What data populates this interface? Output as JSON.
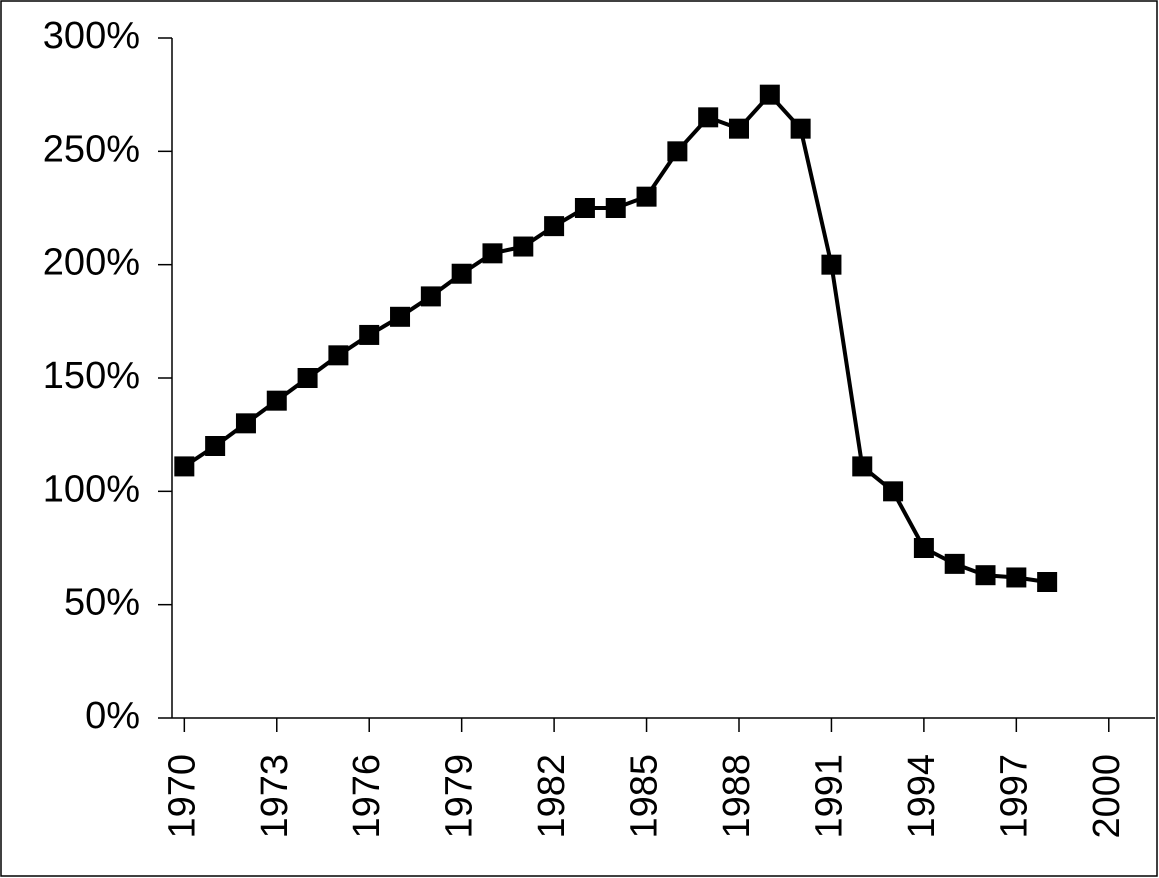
{
  "chart_data": {
    "type": "line",
    "x": [
      1970,
      1971,
      1972,
      1973,
      1974,
      1975,
      1976,
      1977,
      1978,
      1979,
      1980,
      1981,
      1982,
      1983,
      1984,
      1985,
      1986,
      1987,
      1988,
      1989,
      1990,
      1991,
      1992,
      1993,
      1994,
      1995,
      1996,
      1997,
      1998
    ],
    "series": [
      {
        "color": "#000000",
        "values": [
          111,
          120,
          130,
          140,
          150,
          160,
          169,
          177,
          186,
          196,
          205,
          208,
          217,
          225,
          225,
          230,
          250,
          265,
          260,
          275,
          260,
          200,
          111,
          100,
          75,
          68,
          63,
          62,
          60
        ]
      }
    ],
    "xlim": [
      1969.6,
      2001.5
    ],
    "xticks": [
      1970,
      1973,
      1976,
      1979,
      1982,
      1985,
      1988,
      1991,
      1994,
      1997,
      2000
    ],
    "ylim": [
      0,
      300
    ],
    "yticks": [
      {
        "value": 0,
        "label": "0%"
      },
      {
        "value": 50,
        "label": "50%"
      },
      {
        "value": 100,
        "label": "100%"
      },
      {
        "value": 150,
        "label": "150%"
      },
      {
        "value": 200,
        "label": "200%"
      },
      {
        "value": 250,
        "label": "250%"
      },
      {
        "value": 300,
        "label": "300%"
      }
    ]
  }
}
